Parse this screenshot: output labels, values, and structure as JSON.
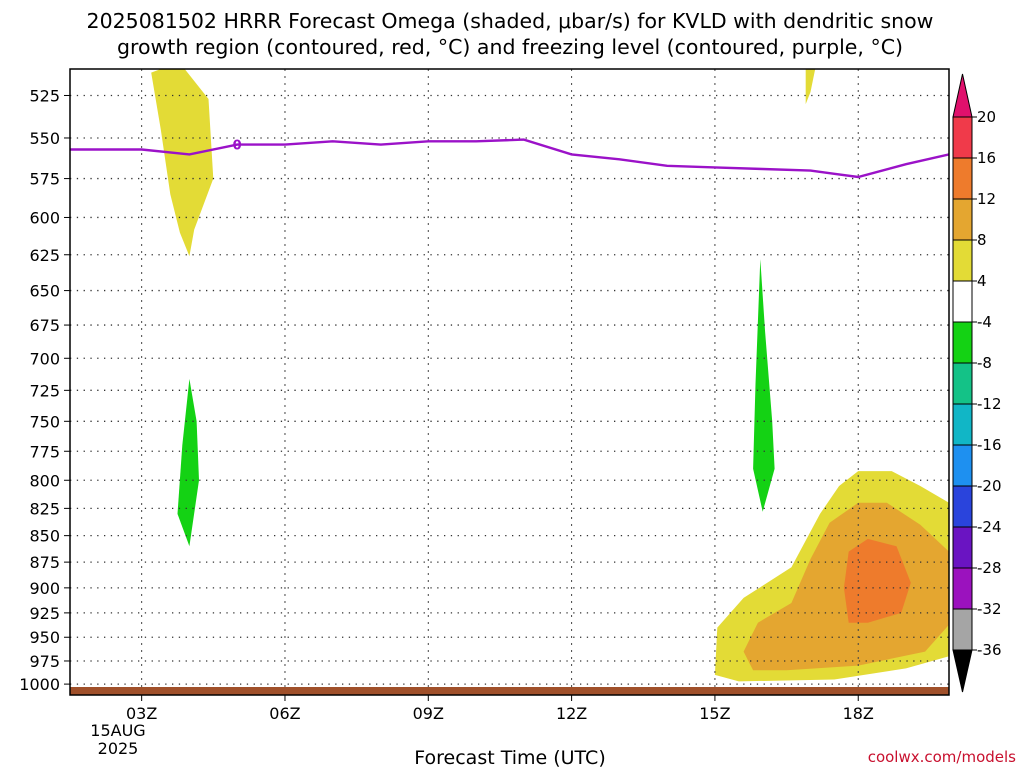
{
  "title_line1": "2025081502 HRRR Forecast Omega (shaded, μbar/s) for KVLD with dendritic snow",
  "title_line2": "growth region (contoured, red, °C) and freezing level (contoured, purple, °C)",
  "credit": "coolwx.com/models",
  "date_label": "15AUG",
  "year_label": "2025",
  "chart_data": {
    "type": "time-height contour",
    "xlabel": "Forecast Time (UTC)",
    "x_ticks": [
      "03Z",
      "06Z",
      "09Z",
      "12Z",
      "15Z",
      "18Z"
    ],
    "x_tick_hours": [
      3,
      6,
      9,
      12,
      15,
      18
    ],
    "xlim": [
      1.5,
      19.9
    ],
    "y_ticks": [
      525,
      550,
      575,
      600,
      625,
      650,
      675,
      700,
      725,
      750,
      775,
      800,
      825,
      850,
      875,
      900,
      925,
      950,
      975,
      1000
    ],
    "ylim": [
      510,
      1012
    ],
    "y_scale": "log-pressure",
    "grid": "dotted",
    "colorbar_labels": [
      "20",
      "16",
      "12",
      "8",
      "4",
      "-4",
      "-8",
      "-12",
      "-16",
      "-20",
      "-24",
      "-28",
      "-32",
      "-36"
    ],
    "colorbar_colors": [
      "#f03a4a",
      "#ee7b2c",
      "#e4a630",
      "#e3db36",
      "#ffffff",
      "#14d214",
      "#14c287",
      "#11b6c6",
      "#1e90f0",
      "#2a44dc",
      "#6a14c2",
      "#9b12be",
      "#a5a5a5"
    ],
    "colorbar_top_color": "#e0106c",
    "colorbar_bottom_color": "#000000",
    "freezing_level_label": "0",
    "freezing_level_color": "#9b12c8",
    "freezing_level": [
      [
        1.5,
        557
      ],
      [
        3.0,
        557
      ],
      [
        4.0,
        560
      ],
      [
        5.0,
        554
      ],
      [
        6.0,
        554
      ],
      [
        7.0,
        552
      ],
      [
        8.0,
        554
      ],
      [
        9.0,
        552
      ],
      [
        10.0,
        552
      ],
      [
        11.0,
        551
      ],
      [
        12.0,
        560
      ],
      [
        13.0,
        563
      ],
      [
        14.0,
        567
      ],
      [
        15.0,
        568
      ],
      [
        16.0,
        569
      ],
      [
        17.0,
        570
      ],
      [
        17.5,
        572
      ],
      [
        18.0,
        574
      ],
      [
        19.0,
        566
      ],
      [
        19.9,
        560
      ]
    ],
    "omega_regions": [
      {
        "level": "4 to 8",
        "color": "#e3db36",
        "points": [
          [
            3.4,
            510
          ],
          [
            3.9,
            510
          ],
          [
            4.4,
            527
          ],
          [
            4.5,
            575
          ],
          [
            4.1,
            608
          ],
          [
            4.0,
            626
          ],
          [
            3.8,
            610
          ],
          [
            3.6,
            585
          ],
          [
            3.4,
            545
          ],
          [
            3.2,
            512
          ]
        ]
      },
      {
        "level": "4 to 8",
        "color": "#e3db36",
        "points": [
          [
            16.9,
            510
          ],
          [
            17.1,
            510
          ],
          [
            17.0,
            523
          ],
          [
            16.9,
            530
          ]
        ]
      },
      {
        "level": "-4 to -8",
        "color": "#14d214",
        "points": [
          [
            4.0,
            716
          ],
          [
            4.15,
            750
          ],
          [
            4.2,
            800
          ],
          [
            4.0,
            860
          ],
          [
            3.75,
            830
          ],
          [
            3.85,
            770
          ]
        ]
      },
      {
        "level": "-4 to -8",
        "color": "#14d214",
        "points": [
          [
            15.95,
            628
          ],
          [
            16.05,
            680
          ],
          [
            16.2,
            750
          ],
          [
            16.25,
            790
          ],
          [
            16.0,
            828
          ],
          [
            15.8,
            790
          ],
          [
            15.85,
            720
          ]
        ]
      },
      {
        "level": "4 to 8",
        "color": "#e3db36",
        "points": [
          [
            15.0,
            990
          ],
          [
            15.05,
            940
          ],
          [
            15.6,
            910
          ],
          [
            16.6,
            880
          ],
          [
            17.2,
            830
          ],
          [
            17.6,
            805
          ],
          [
            18.0,
            792
          ],
          [
            18.7,
            792
          ],
          [
            19.3,
            805
          ],
          [
            19.9,
            820
          ],
          [
            19.9,
            970
          ],
          [
            19.0,
            983
          ],
          [
            17.5,
            995
          ],
          [
            15.5,
            997
          ]
        ]
      },
      {
        "level": "8 to 12",
        "color": "#e4a630",
        "points": [
          [
            15.6,
            965
          ],
          [
            15.9,
            935
          ],
          [
            16.6,
            915
          ],
          [
            17.0,
            872
          ],
          [
            17.4,
            838
          ],
          [
            18.0,
            820
          ],
          [
            18.6,
            820
          ],
          [
            19.3,
            840
          ],
          [
            19.9,
            865
          ],
          [
            19.9,
            937
          ],
          [
            19.4,
            965
          ],
          [
            18.0,
            980
          ],
          [
            16.5,
            985
          ],
          [
            15.8,
            985
          ]
        ]
      },
      {
        "level": "12 to 16",
        "color": "#ee7b2c",
        "points": [
          [
            17.8,
            865
          ],
          [
            18.2,
            853
          ],
          [
            18.8,
            860
          ],
          [
            19.1,
            895
          ],
          [
            18.9,
            925
          ],
          [
            18.2,
            935
          ],
          [
            17.8,
            935
          ],
          [
            17.7,
            900
          ]
        ]
      }
    ],
    "surface_color": "#a0502a"
  }
}
